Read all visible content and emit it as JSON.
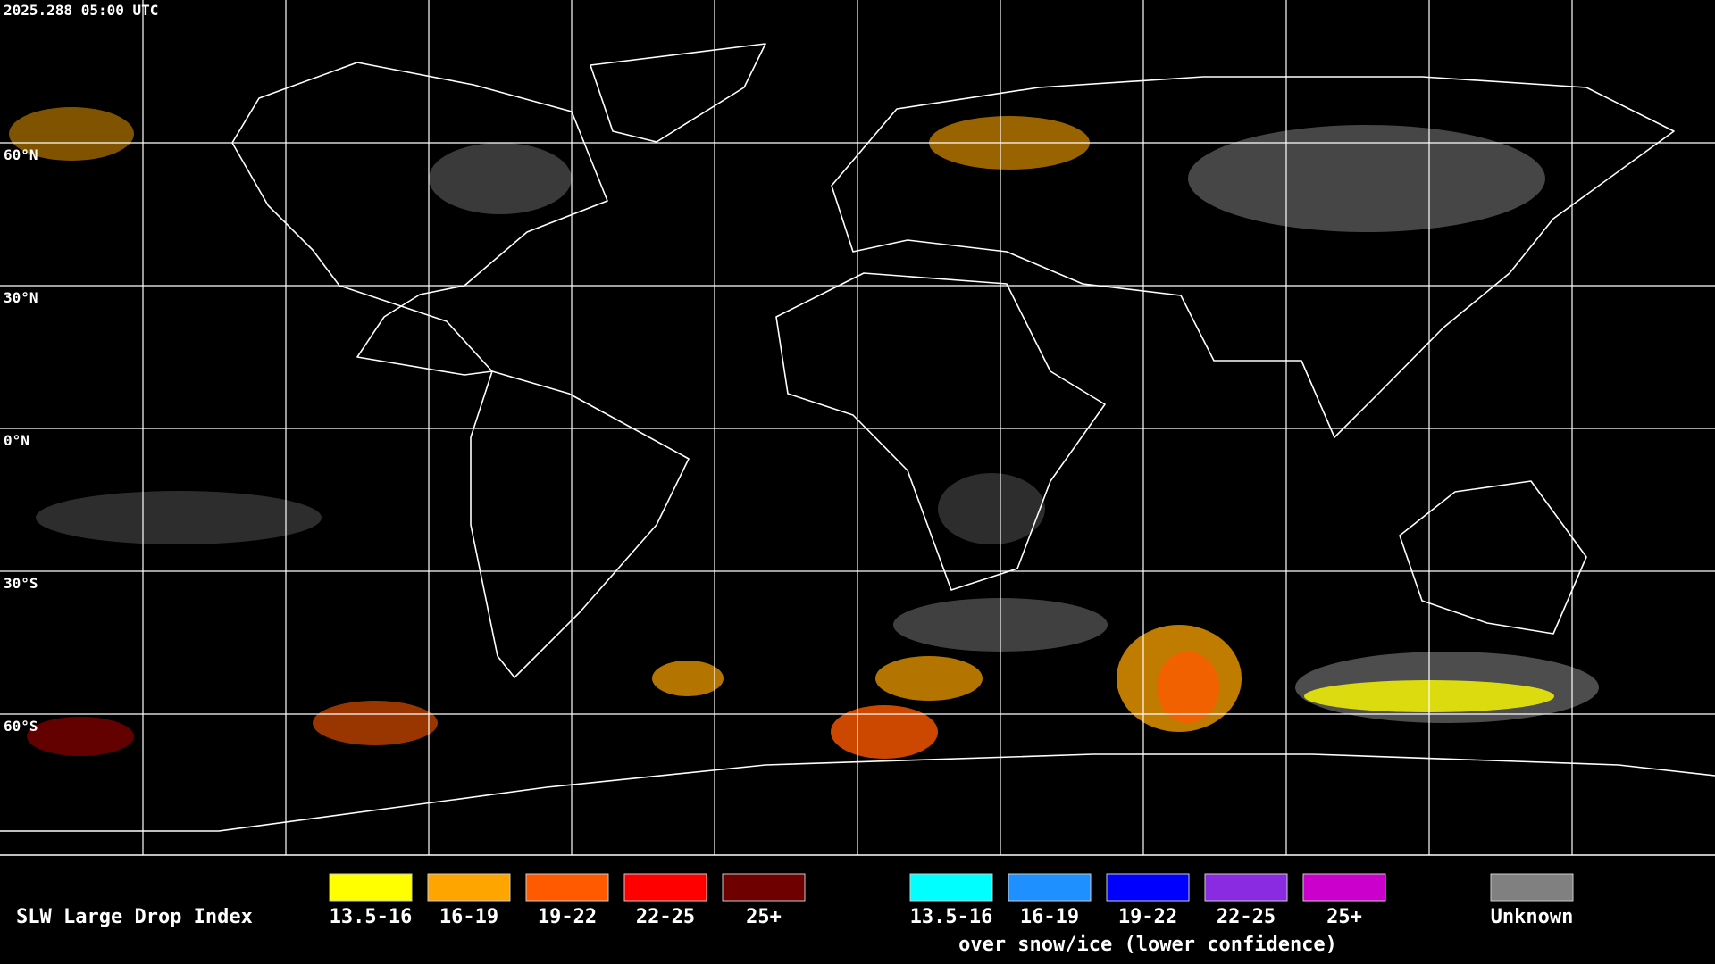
{
  "timestamp": "2025.288 05:00 UTC",
  "grid_labels": [
    "60°N",
    "30°N",
    "0°N",
    "30°S",
    "60°S"
  ],
  "legend": {
    "title": "SLW Large Drop Index",
    "groups": [
      {
        "items": [
          {
            "label": "13.5-16",
            "color": "#ffff00"
          },
          {
            "label": "16-19",
            "color": "#ffa500"
          },
          {
            "label": "19-22",
            "color": "#ff5a00"
          },
          {
            "label": "22-25",
            "color": "#ff0000"
          },
          {
            "label": "25+",
            "color": "#6e0000"
          }
        ]
      },
      {
        "items": [
          {
            "label": "13.5-16",
            "color": "#00ffff"
          },
          {
            "label": "16-19",
            "color": "#1e90ff"
          },
          {
            "label": "19-22",
            "color": "#0000ff"
          },
          {
            "label": "22-25",
            "color": "#8a2be2"
          },
          {
            "label": "25+",
            "color": "#cc00cc"
          }
        ],
        "caption": "over snow/ice (lower confidence)"
      }
    ],
    "unknown": {
      "label": "Unknown",
      "color": "#808080"
    }
  }
}
